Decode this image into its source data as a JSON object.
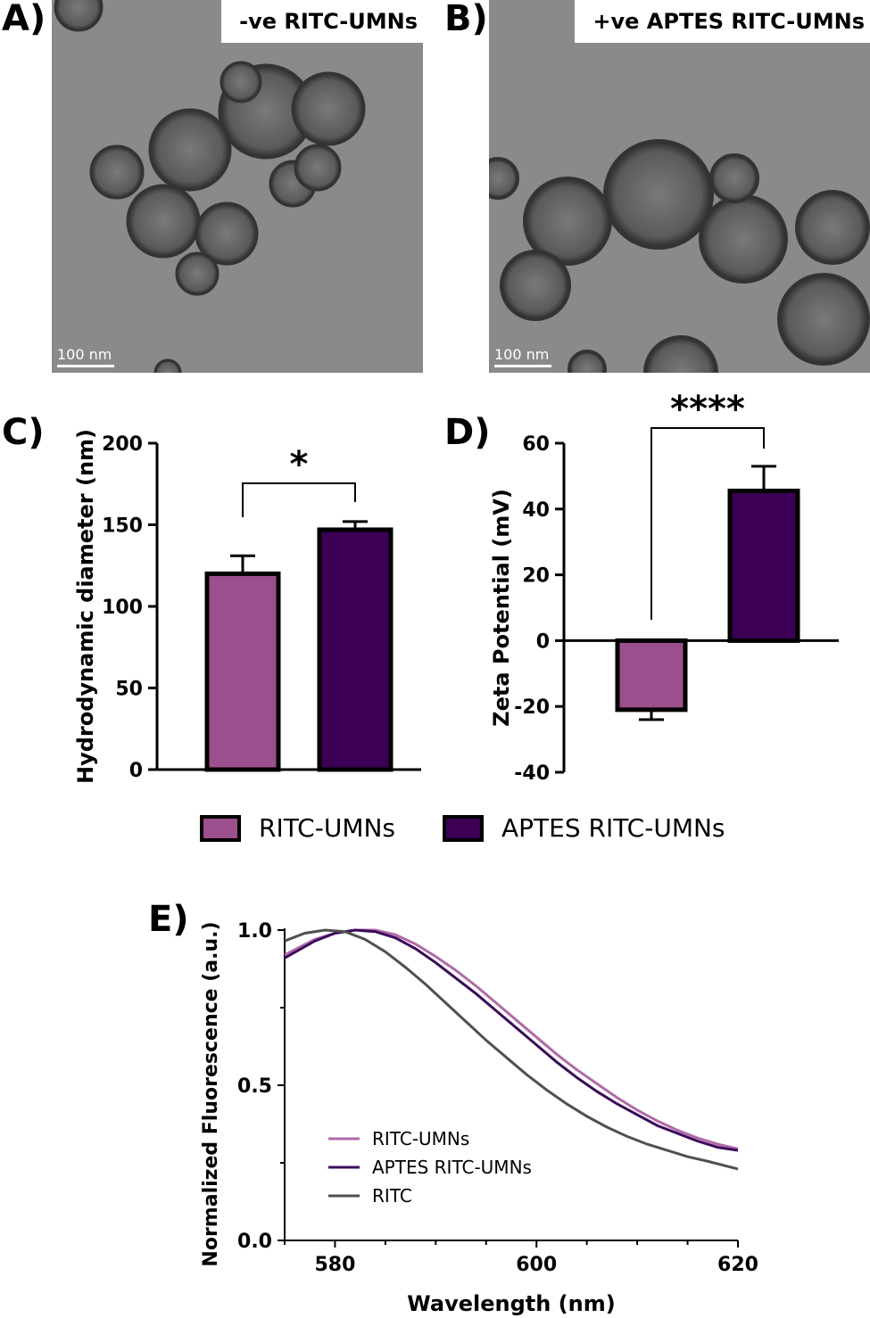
{
  "panels": {
    "a": {
      "letter": "A)",
      "label": "-ve RITC-UMNs",
      "scale": "100 nm"
    },
    "b": {
      "letter": "B)",
      "label": "+ve APTES RITC-UMNs",
      "scale": "100 nm"
    },
    "c": {
      "letter": "C)"
    },
    "d": {
      "letter": "D)"
    },
    "e": {
      "letter": "E)"
    }
  },
  "legend_cd": {
    "items": [
      {
        "name": "RITC-UMNs",
        "color": "#9b4f8c"
      },
      {
        "name": "APTES RITC-UMNs",
        "color": "#3b0055"
      }
    ]
  },
  "chart_data": [
    {
      "type": "bar",
      "panel": "C",
      "ylabel": "Hydrodynamic diameter (nm)",
      "ylim": [
        0,
        200
      ],
      "yticks": [
        0,
        50,
        100,
        150,
        200
      ],
      "categories": [
        "RITC-UMNs",
        "APTES RITC-UMNs"
      ],
      "values": [
        120,
        147
      ],
      "errors": [
        11,
        5
      ],
      "colors": [
        "#9b4f8c",
        "#3b0055"
      ],
      "significance": "*"
    },
    {
      "type": "bar",
      "panel": "D",
      "ylabel": "Zeta Potential  (mV)",
      "ylim": [
        -40,
        60
      ],
      "yticks": [
        -40,
        -20,
        0,
        20,
        40,
        60
      ],
      "categories": [
        "RITC-UMNs",
        "APTES RITC-UMNs"
      ],
      "values": [
        -21,
        45.5
      ],
      "errors": [
        3,
        7.5
      ],
      "colors": [
        "#9b4f8c",
        "#3b0055"
      ],
      "significance": "****"
    },
    {
      "type": "line",
      "panel": "E",
      "xlabel": "Wavelength (nm)",
      "ylabel": "Normalized Fluorescence (a.u.)",
      "xlim": [
        575,
        620
      ],
      "ylim": [
        0,
        1.0
      ],
      "xticks": [
        580,
        600,
        620
      ],
      "yticks": [
        "0.0",
        "0.5",
        "1.0"
      ],
      "legend_position": "lower-left",
      "series": [
        {
          "name": "RITC-UMNs",
          "color": "#b06aa8",
          "x": [
            575,
            578,
            580,
            582,
            584,
            586,
            588,
            590,
            592,
            594,
            596,
            598,
            600,
            602,
            604,
            606,
            608,
            610,
            612,
            614,
            616,
            618,
            620
          ],
          "y": [
            0.92,
            0.97,
            0.99,
            1.0,
            1.0,
            0.985,
            0.955,
            0.915,
            0.87,
            0.82,
            0.765,
            0.71,
            0.655,
            0.6,
            0.55,
            0.505,
            0.46,
            0.42,
            0.385,
            0.355,
            0.33,
            0.31,
            0.295
          ]
        },
        {
          "name": "APTES RITC-UMNs",
          "color": "#3b0a5a",
          "x": [
            575,
            578,
            580,
            582,
            584,
            586,
            588,
            590,
            592,
            594,
            596,
            598,
            600,
            602,
            604,
            606,
            608,
            610,
            612,
            614,
            616,
            618,
            620
          ],
          "y": [
            0.91,
            0.965,
            0.99,
            1.0,
            0.995,
            0.975,
            0.94,
            0.895,
            0.845,
            0.795,
            0.74,
            0.685,
            0.63,
            0.575,
            0.525,
            0.48,
            0.44,
            0.405,
            0.37,
            0.345,
            0.32,
            0.3,
            0.29
          ]
        },
        {
          "name": "RITC",
          "color": "#505050",
          "x": [
            575,
            577,
            579,
            581,
            583,
            585,
            587,
            589,
            591,
            593,
            595,
            597,
            599,
            601,
            603,
            605,
            607,
            609,
            611,
            613,
            615,
            617,
            620
          ],
          "y": [
            0.965,
            0.99,
            1.0,
            0.995,
            0.97,
            0.93,
            0.88,
            0.825,
            0.765,
            0.705,
            0.645,
            0.59,
            0.535,
            0.485,
            0.44,
            0.4,
            0.365,
            0.335,
            0.31,
            0.29,
            0.27,
            0.255,
            0.23
          ]
        }
      ]
    }
  ]
}
